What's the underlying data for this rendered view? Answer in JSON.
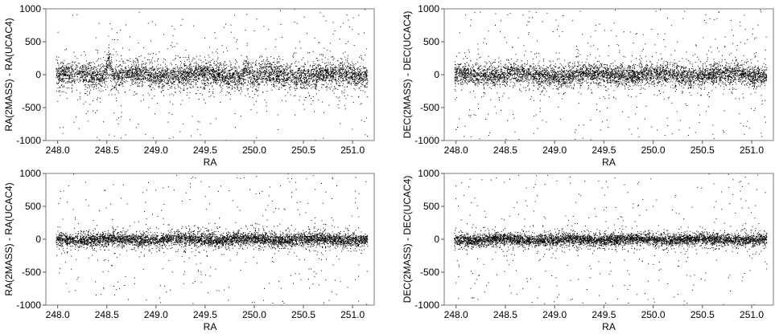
{
  "chart_data": [
    {
      "type": "scatter",
      "xlabel": "RA",
      "ylabel": "RA(2MASS) - RA(UCAC4)",
      "xlim": [
        247.88,
        251.22
      ],
      "ylim": [
        -1000,
        1000
      ],
      "xticks": [
        248.0,
        248.5,
        249.0,
        249.5,
        250.0,
        250.5,
        251.0
      ],
      "xtick_labels": [
        "248.0",
        "248.5",
        "249.0",
        "249.5",
        "250.0",
        "250.5",
        "251.0"
      ],
      "yticks": [
        -1000,
        -500,
        0,
        500,
        1000
      ],
      "ytick_labels": [
        "-1000",
        "-500",
        "0",
        "500",
        "1000"
      ],
      "grid": false,
      "marker_color": "#000000",
      "band": {
        "x_range": [
          247.98,
          251.15
        ],
        "center": 0,
        "core_spread": 80,
        "outlier_range": [
          -1000,
          1000
        ]
      },
      "features": [
        {
          "x": 248.52,
          "offset": 300,
          "description": "tilted streak"
        },
        {
          "x": 249.92,
          "offset": 150
        },
        {
          "x": 250.0,
          "offset": -100
        },
        {
          "x": 250.3,
          "offset": -60
        }
      ]
    },
    {
      "type": "scatter",
      "xlabel": "RA",
      "ylabel": "DEC(2MASS) - DEC(UCAC4)",
      "xlim": [
        247.88,
        251.22
      ],
      "ylim": [
        -1000,
        1000
      ],
      "xticks": [
        248.0,
        248.5,
        249.0,
        249.5,
        250.0,
        250.5,
        251.0
      ],
      "xtick_labels": [
        "248.0",
        "248.5",
        "249.0",
        "249.5",
        "250.0",
        "250.5",
        "251.0"
      ],
      "yticks": [
        -1000,
        -500,
        0,
        500,
        1000
      ],
      "ytick_labels": [
        "-1000",
        "-500",
        "0",
        "500",
        "1000"
      ],
      "grid": false,
      "marker_color": "#000000",
      "band": {
        "x_range": [
          247.98,
          251.15
        ],
        "center": 0,
        "core_spread": 70,
        "outlier_range": [
          -1000,
          1000
        ]
      },
      "features": [
        {
          "x": 248.55,
          "offset": 60
        },
        {
          "x": 250.85,
          "offset": 80
        }
      ]
    },
    {
      "type": "scatter",
      "xlabel": "RA",
      "ylabel": "RA(2MASS) - RA(UCAC4)",
      "xlim": [
        247.88,
        251.22
      ],
      "ylim": [
        -1000,
        1000
      ],
      "xticks": [
        248.0,
        248.5,
        249.0,
        249.5,
        250.0,
        250.5,
        251.0
      ],
      "xtick_labels": [
        "248.0",
        "248.5",
        "249.0",
        "249.5",
        "250.0",
        "250.5",
        "251.0"
      ],
      "yticks": [
        -1000,
        -500,
        0,
        500,
        1000
      ],
      "ytick_labels": [
        "-1000",
        "-500",
        "0",
        "500",
        "1000"
      ],
      "grid": false,
      "marker_color": "#000000",
      "band": {
        "x_range": [
          247.98,
          251.15
        ],
        "center": 0,
        "core_spread": 45,
        "outlier_range": [
          -1000,
          1000
        ]
      },
      "features": []
    },
    {
      "type": "scatter",
      "xlabel": "RA",
      "ylabel": "DEC(2MASS) - DEC(UCAC4)",
      "xlim": [
        247.88,
        251.22
      ],
      "ylim": [
        -1000,
        1000
      ],
      "xticks": [
        248.0,
        248.5,
        249.0,
        249.5,
        250.0,
        250.5,
        251.0
      ],
      "xtick_labels": [
        "248.0",
        "248.5",
        "249.0",
        "249.5",
        "250.0",
        "250.5",
        "251.0"
      ],
      "yticks": [
        -1000,
        -500,
        0,
        500,
        1000
      ],
      "ytick_labels": [
        "-1000",
        "-500",
        "0",
        "500",
        "1000"
      ],
      "grid": false,
      "marker_color": "#000000",
      "band": {
        "x_range": [
          247.98,
          251.15
        ],
        "center": 0,
        "core_spread": 40,
        "outlier_range": [
          -1000,
          1000
        ]
      },
      "features": []
    }
  ]
}
